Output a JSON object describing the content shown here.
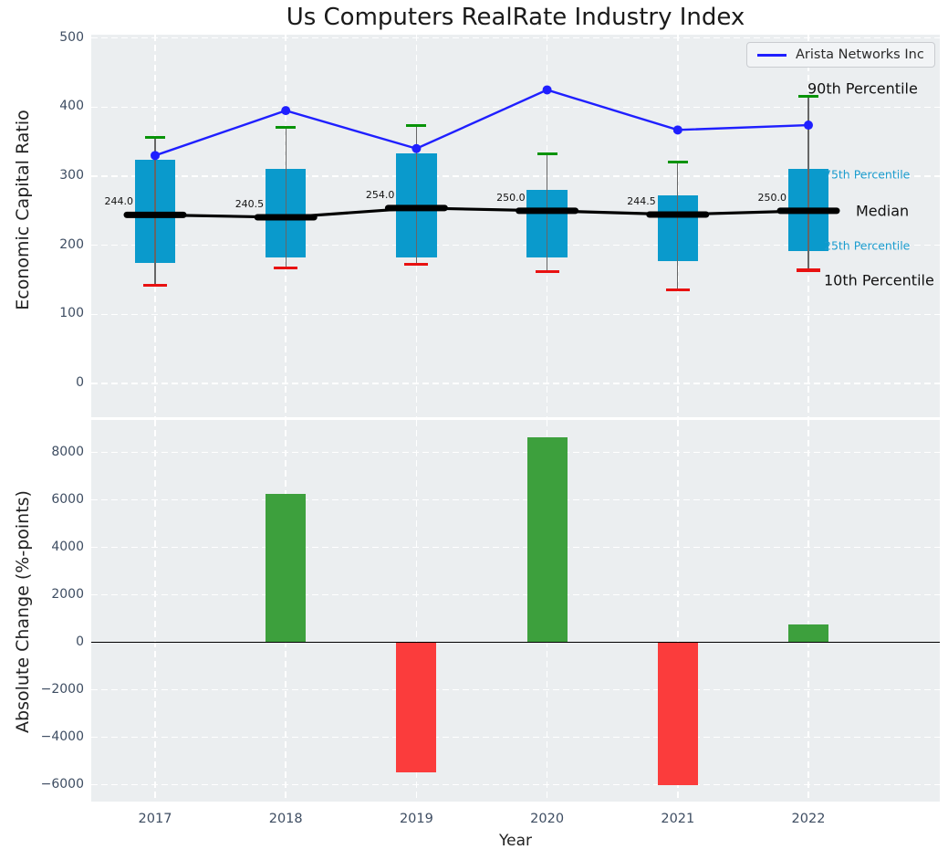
{
  "title": "Us Computers RealRate Industry Index",
  "legend": {
    "series_label": "Arista Networks Inc"
  },
  "annotations": {
    "p90": "90th Percentile",
    "p75": "75th Percentile",
    "median": "Median",
    "p25": "25th Percentile",
    "p10": "10th Percentile"
  },
  "colors": {
    "box_fill": "#0a9acc",
    "bar_positive": "#3da03d",
    "bar_negative": "#fb3c3c",
    "cap_high": "#089308",
    "cap_low": "#e81111",
    "line_series": "#1f1fff",
    "median_line": "#000000",
    "plot_bg": "#ebeef0",
    "grid": "#ffffff",
    "tick_text": "#3e4d62",
    "percentile_label": "#1b9cce"
  },
  "chart_data": [
    {
      "type": "boxplot",
      "ylabel": "Economic Capital Ratio",
      "categories": [
        "2017",
        "2018",
        "2019",
        "2020",
        "2021",
        "2022"
      ],
      "ytick_labels": [
        "0",
        "100",
        "200",
        "300",
        "400",
        "500"
      ],
      "ytick_values": [
        0,
        100,
        200,
        300,
        400,
        500
      ],
      "ylim": [
        -49,
        505
      ],
      "grid": true,
      "legend_position": "upper right",
      "boxes": [
        {
          "year": "2017",
          "p10": 142,
          "q1": 175,
          "median": 244.0,
          "q3": 324,
          "p90": 356,
          "median_label": "244.0"
        },
        {
          "year": "2018",
          "p10": 167,
          "q1": 183,
          "median": 240.5,
          "q3": 311,
          "p90": 371,
          "median_label": "240.5"
        },
        {
          "year": "2019",
          "p10": 172,
          "q1": 183,
          "median": 254.0,
          "q3": 333,
          "p90": 373,
          "median_label": "254.0"
        },
        {
          "year": "2020",
          "p10": 162,
          "q1": 182,
          "median": 250.0,
          "q3": 280,
          "p90": 332,
          "median_label": "250.0"
        },
        {
          "year": "2021",
          "p10": 136,
          "q1": 177,
          "median": 244.5,
          "q3": 272,
          "p90": 321,
          "median_label": "244.5"
        },
        {
          "year": "2022",
          "p10": 164,
          "q1": 191,
          "median": 250.0,
          "q3": 311,
          "p90": 416,
          "median_label": "250.0"
        }
      ],
      "series": [
        {
          "name": "Arista Networks Inc",
          "values": [
            330,
            395,
            340,
            425,
            367,
            374
          ]
        },
        {
          "name": "Median",
          "values": [
            244.0,
            240.5,
            254.0,
            250.0,
            244.5,
            250.0
          ]
        }
      ]
    },
    {
      "type": "bar",
      "ylabel": "Absolute Change (%-points)",
      "xlabel": "Year",
      "categories": [
        "2017",
        "2018",
        "2019",
        "2020",
        "2021",
        "2022"
      ],
      "values": [
        0,
        6240,
        -5450,
        8650,
        -5970,
        760
      ],
      "ytick_labels": [
        "8000",
        "6000",
        "4000",
        "2000",
        "0",
        "−2000",
        "−4000",
        "−6000"
      ],
      "ytick_values": [
        8000,
        6000,
        4000,
        2000,
        0,
        -2000,
        -4000,
        -6000
      ],
      "ylim": [
        -6700,
        9350
      ],
      "grid": true
    }
  ]
}
